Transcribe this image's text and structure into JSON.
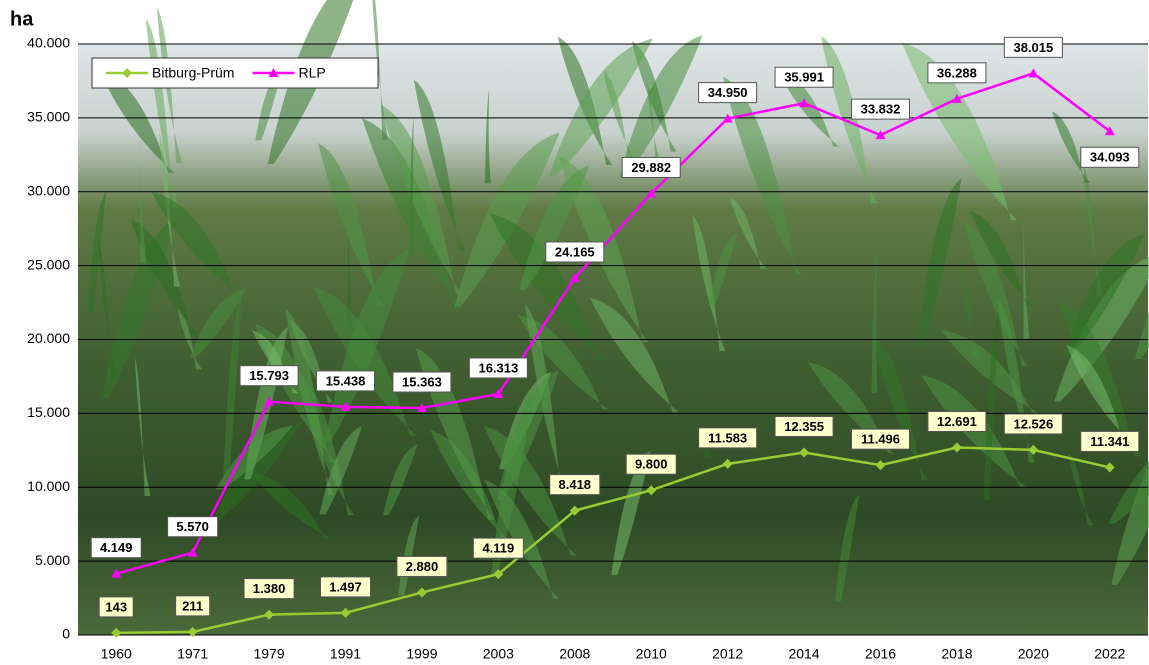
{
  "chart_data": {
    "type": "line",
    "y_label": "ha",
    "categories": [
      "1960",
      "1971",
      "1979",
      "1991",
      "1999",
      "2003",
      "2008",
      "2010",
      "2012",
      "2014",
      "2016",
      "2018",
      "2020",
      "2022"
    ],
    "series": [
      {
        "name": "Bitburg-Prüm",
        "color": "#99cc33",
        "marker": "diamond",
        "label_fill": "#ffffcc",
        "values": [
          143,
          211,
          1380,
          1497,
          2880,
          4119,
          8418,
          9800,
          11583,
          12355,
          11496,
          12691,
          12526,
          11341
        ],
        "value_labels": [
          "143",
          "211",
          "1.380",
          "1.497",
          "2.880",
          "4.119",
          "8.418",
          "9.800",
          "11.583",
          "12.355",
          "11.496",
          "12.691",
          "12.526",
          "11.341"
        ]
      },
      {
        "name": "RLP",
        "color": "#ff00ff",
        "marker": "triangle",
        "label_fill": "#ffffff",
        "values": [
          4149,
          5570,
          15793,
          15438,
          15363,
          16313,
          24165,
          29882,
          34950,
          35991,
          33832,
          36288,
          38015,
          34093
        ],
        "value_labels": [
          "4.149",
          "5.570",
          "15.793",
          "15.438",
          "15.363",
          "16.313",
          "24.165",
          "29.882",
          "34.950",
          "35.991",
          "33.832",
          "36.288",
          "38.015",
          "34.093"
        ]
      }
    ],
    "ylim": [
      0,
      40000
    ],
    "yticks": [
      0,
      {
        "value": 5000,
        "label": "5.000"
      },
      {
        "value": 10000,
        "label": "10.000"
      },
      {
        "value": 15000,
        "label": "15.000"
      },
      {
        "value": 20000,
        "label": "20.000"
      },
      {
        "value": 25000,
        "label": "25.000"
      },
      {
        "value": 30000,
        "label": "30.000"
      },
      {
        "value": 35000,
        "label": "35.000"
      },
      {
        "value": 40000,
        "label": "40.000"
      }
    ],
    "grid": true,
    "legend": "upper left"
  }
}
